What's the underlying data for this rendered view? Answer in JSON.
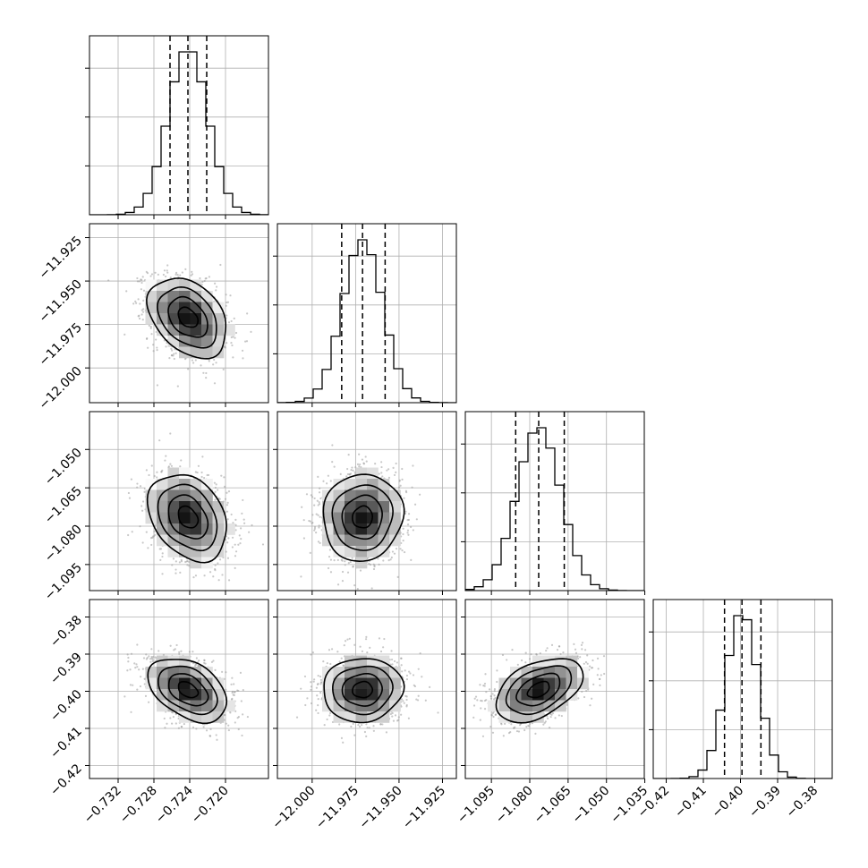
{
  "chart_data": {
    "type": "corner",
    "params": [
      {
        "range": [
          -0.7352,
          -0.7152
        ],
        "ticks": [
          -0.732,
          -0.728,
          -0.724,
          -0.72
        ],
        "tick_labels": [
          "−0.732",
          "−0.728",
          "−0.724",
          "−0.720"
        ],
        "mean": -0.7242,
        "sd": 0.0022,
        "quantiles": [
          -0.7262,
          -0.7242,
          -0.7221
        ]
      },
      {
        "range": [
          -12.02,
          -11.917
        ],
        "ticks": [
          -12.0,
          -11.975,
          -11.95,
          -11.925
        ],
        "tick_labels": [
          "−12.000",
          "−11.975",
          "−11.950",
          "−11.925"
        ],
        "mean": -11.971,
        "sd": 0.0115,
        "quantiles": [
          -11.983,
          -11.971,
          -11.958
        ]
      },
      {
        "range": [
          -1.1052,
          -1.0352
        ],
        "ticks": [
          -1.095,
          -1.08,
          -1.065,
          -1.05,
          -1.035
        ],
        "tick_labels": [
          "−1.095",
          "−1.080",
          "−1.065",
          "−1.050",
          "−1.035"
        ],
        "mean": -1.0765,
        "sd": 0.0085,
        "quantiles": [
          -1.0855,
          -1.0765,
          -1.0665
        ]
      },
      {
        "range": [
          -0.4235,
          -0.3753
        ],
        "ticks": [
          -0.42,
          -0.41,
          -0.4,
          -0.39,
          -0.38
        ],
        "tick_labels": [
          "−0.42",
          "−0.41",
          "−0.40",
          "−0.39",
          "−0.38"
        ],
        "mean": -0.3996,
        "sd": 0.0043,
        "quantiles": [
          -0.4043,
          -0.3996,
          -0.3945
        ]
      }
    ],
    "correlations": {
      "1-0": -0.35,
      "2-0": -0.3,
      "2-1": 0.05,
      "3-0": -0.4,
      "3-1": 0.05,
      "3-2": 0.45
    },
    "contour_levels_sigma": [
      0.5,
      1.0,
      1.5,
      2.0
    ],
    "histogram_bins": 20,
    "grid": true,
    "colors": {
      "line": "#000000",
      "scatter": "#9a9a9a",
      "density_dark": "#000000",
      "density_light": "#ffffff",
      "grid": "#b0b0b0"
    }
  }
}
